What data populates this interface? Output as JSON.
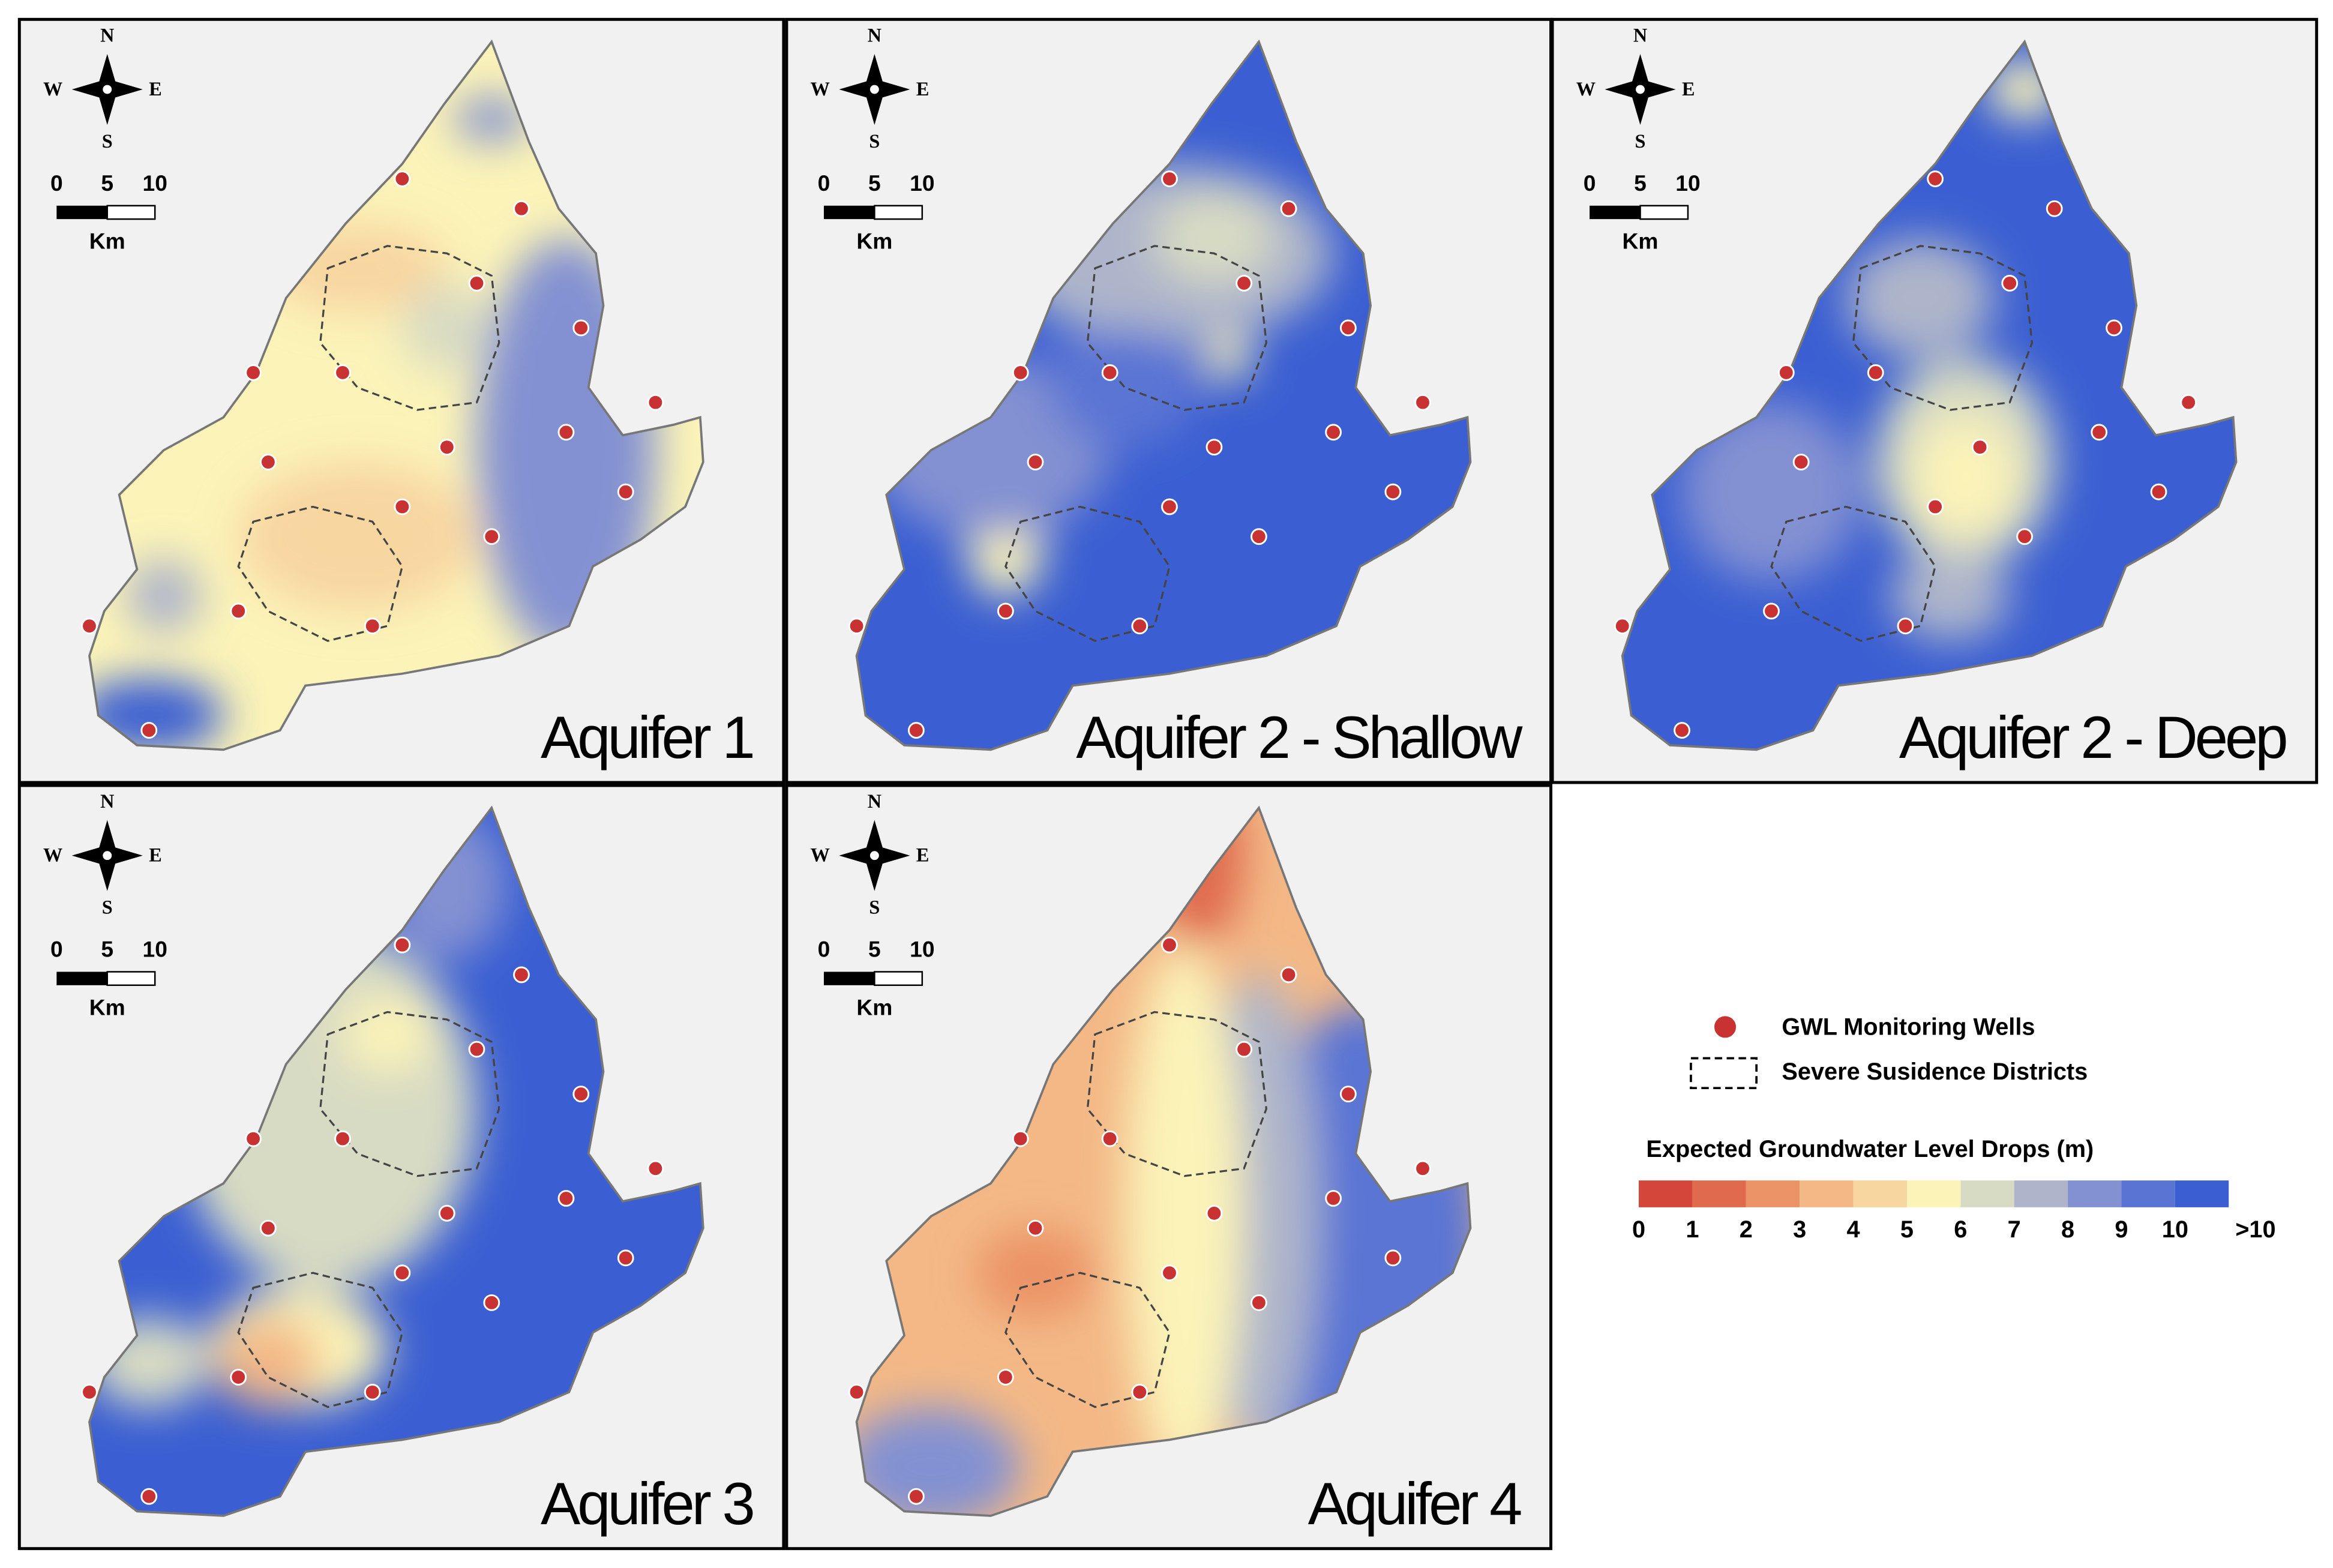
{
  "panels": [
    {
      "title": "Aquifer 1"
    },
    {
      "title": "Aquifer 2 - Shallow"
    },
    {
      "title": "Aquifer 2 - Deep"
    },
    {
      "title": "Aquifer 3"
    },
    {
      "title": "Aquifer 4"
    }
  ],
  "compass": {
    "north": "N",
    "south": "S",
    "east": "E",
    "west": "W"
  },
  "scale_bar": {
    "labels": [
      "0",
      "5",
      "10"
    ],
    "unit": "Km"
  },
  "legend": {
    "wells": "GWL Monitoring Wells",
    "districts": "Severe Susidence Districts",
    "colorbar_title": "Expected Groundwater Level Drops (m)",
    "colorbar_labels": [
      "0",
      "1",
      "2",
      "3",
      "4",
      "5",
      "6",
      "7",
      "8",
      "9",
      "10",
      ">10"
    ],
    "colorbar_colors": [
      "#d4453a",
      "#df6a4e",
      "#eb9366",
      "#f3b886",
      "#f8d6a0",
      "#fbf3b8",
      "#d8dbc3",
      "#aeb5ca",
      "#8391d2",
      "#5a74d4",
      "#3b5fd2"
    ]
  }
}
